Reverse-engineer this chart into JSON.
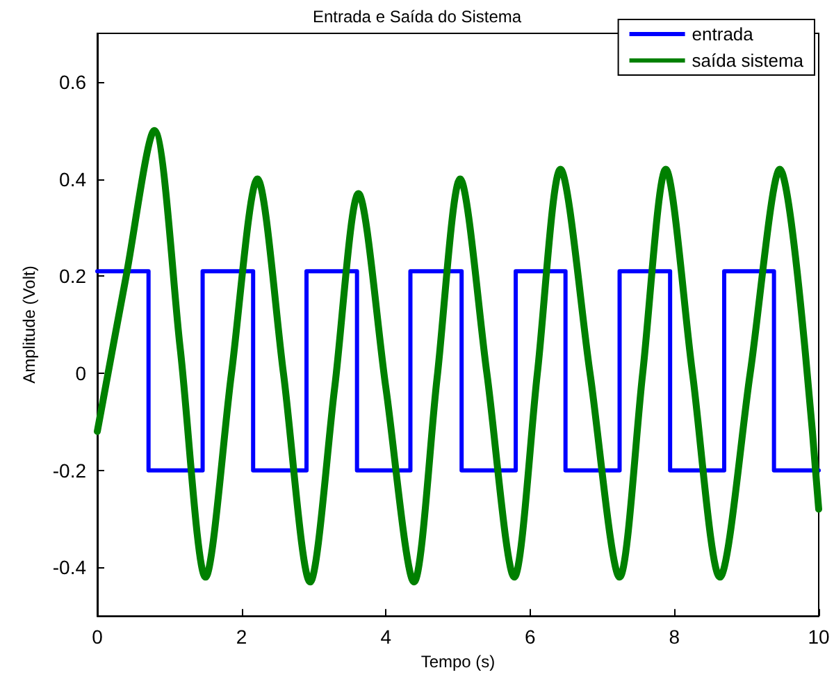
{
  "chart_data": {
    "type": "line",
    "title": "Entrada e Saída do Sistema",
    "xlabel": "Tempo (s)",
    "ylabel": "Amplitude (Volt)",
    "xlim": [
      0,
      10
    ],
    "xticks": [
      0,
      2,
      4,
      6,
      8,
      10
    ],
    "ylim": [
      -0.5,
      0.7
    ],
    "yticks": [
      -0.4,
      -0.2,
      0,
      0.2,
      0.4,
      0.6
    ],
    "grid": false,
    "legend": "top right",
    "marker": "none",
    "line_style": "solid",
    "series": [
      {
        "name": "entrada",
        "color": "#0000ff",
        "x": [
          0,
          0.71,
          0.71,
          1.46,
          1.46,
          2.16,
          2.16,
          2.9,
          2.9,
          3.6,
          3.6,
          4.34,
          4.34,
          5.05,
          5.05,
          5.8,
          5.8,
          6.49,
          6.49,
          7.24,
          7.24,
          7.94,
          7.94,
          8.69,
          8.69,
          9.38,
          9.38,
          10
        ],
        "values": [
          0.21,
          0.21,
          -0.2,
          -0.2,
          0.21,
          0.21,
          -0.2,
          -0.2,
          0.21,
          0.21,
          -0.2,
          -0.2,
          0.21,
          0.21,
          -0.2,
          -0.2,
          0.21,
          0.21,
          -0.2,
          -0.2,
          0.21,
          0.21,
          -0.2,
          -0.2,
          0.21,
          0.21,
          -0.2,
          -0.2
        ]
      },
      {
        "name": "saída sistema",
        "color": "#008000",
        "x": [
          0,
          0.4,
          0.79,
          1.15,
          1.5,
          1.86,
          2.22,
          2.58,
          2.95,
          3.29,
          3.62,
          4.0,
          4.39,
          4.71,
          5.03,
          5.4,
          5.78,
          6.1,
          6.42,
          6.83,
          7.24,
          7.56,
          7.88,
          8.25,
          8.63,
          9.05,
          9.46,
          10
        ],
        "values": [
          -0.12,
          0.2,
          0.5,
          0.05,
          -0.42,
          0.0,
          0.4,
          0.0,
          -0.43,
          -0.03,
          0.37,
          -0.03,
          -0.43,
          -0.01,
          0.4,
          0.0,
          -0.42,
          0.0,
          0.42,
          0.0,
          -0.42,
          0.0,
          0.42,
          0.0,
          -0.42,
          0.0,
          0.42,
          -0.28
        ]
      }
    ]
  }
}
